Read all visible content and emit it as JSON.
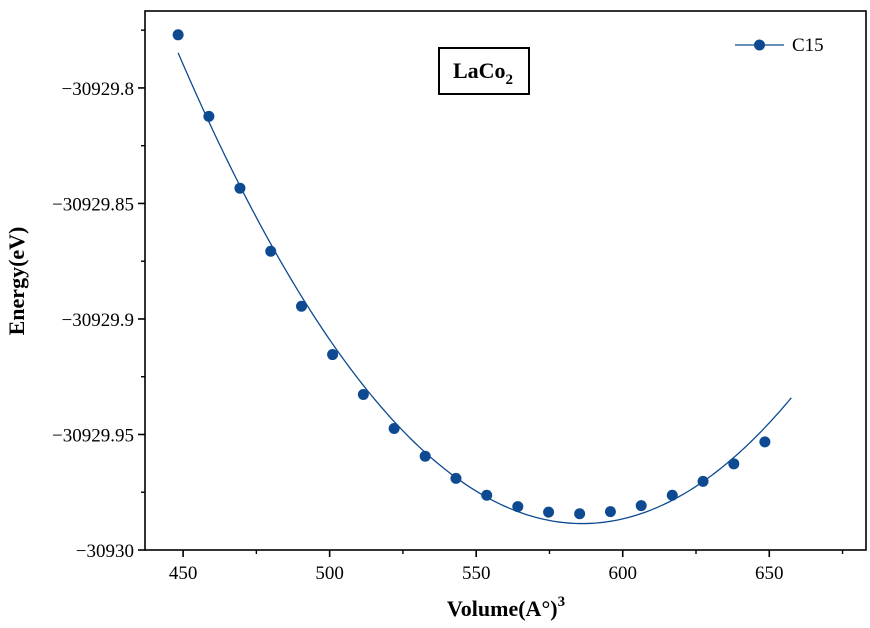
{
  "chart_data": {
    "type": "line",
    "xlabel": "Volume(A°)",
    "xlabel_superscript": "3",
    "ylabel": "Energy(eV)",
    "xlim": [
      437,
      683
    ],
    "ylim": [
      -30930.0,
      -30929.7667
    ],
    "xticks": [
      450,
      500,
      550,
      600,
      650
    ],
    "xtick_labels": [
      "450",
      "500",
      "550",
      "600",
      "650"
    ],
    "yticks": [
      -30929.8,
      -30929.85,
      -30929.9,
      -30929.95,
      -30930.0
    ],
    "ytick_labels": [
      "−30929.8",
      "−30929.85",
      "−30929.9",
      "−30929.95",
      "−30930"
    ],
    "grid": false,
    "legend_position": "top-right",
    "annotation": {
      "main": "LaCo",
      "subscript": "2"
    },
    "series": [
      {
        "name": "C15",
        "color": "#0d4a91",
        "x": [
          448.3,
          458.8,
          469.4,
          479.9,
          490.4,
          501.0,
          511.5,
          522.0,
          532.6,
          543.1,
          553.6,
          564.2,
          574.7,
          585.3,
          595.8,
          606.3,
          616.9,
          627.4,
          637.9,
          648.5
        ],
        "y": [
          -30929.777,
          -30929.8123,
          -30929.8434,
          -30929.8707,
          -30929.8945,
          -30929.9154,
          -30929.9327,
          -30929.9474,
          -30929.9594,
          -30929.969,
          -30929.9763,
          -30929.9812,
          -30929.9836,
          -30929.9843,
          -30929.9834,
          -30929.9808,
          -30929.9763,
          -30929.9703,
          -30929.9627,
          -30929.9532
        ],
        "fit_x_end": 657.5,
        "fit_y_end": -30929.9436
      }
    ]
  }
}
